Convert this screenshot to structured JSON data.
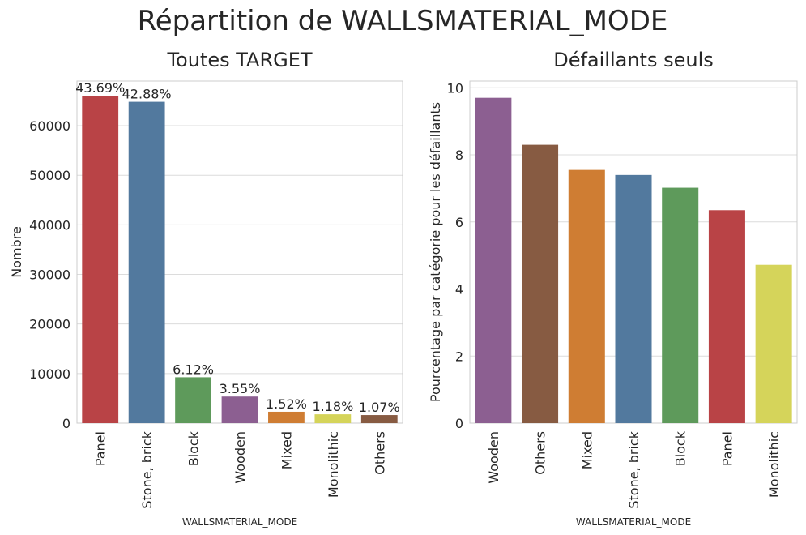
{
  "figure": {
    "title": "Répartition de WALLSMATERIAL_MODE"
  },
  "chart_data": [
    {
      "type": "bar",
      "title": "Toutes TARGET",
      "xlabel": "WALLSMATERIAL_MODE",
      "ylabel": "Nombre",
      "ylim": [
        0,
        69000
      ],
      "yticks": [
        0,
        10000,
        20000,
        30000,
        40000,
        50000,
        60000
      ],
      "grid": true,
      "categories": [
        "Panel",
        "Stone, brick",
        "Block",
        "Wooden",
        "Mixed",
        "Monolithic",
        "Others"
      ],
      "values": [
        66040,
        64815,
        9253,
        5362,
        2296,
        1779,
        1625
      ],
      "data_labels": [
        "43.69%",
        "42.88%",
        "6.12%",
        "3.55%",
        "1.52%",
        "1.18%",
        "1.07%"
      ],
      "colors": [
        "#b94346",
        "#52799e",
        "#5e9a5b",
        "#8c5f91",
        "#cf7d33",
        "#d5d45a",
        "#875b42"
      ]
    },
    {
      "type": "bar",
      "title": "Défaillants seuls",
      "xlabel": "WALLSMATERIAL_MODE",
      "ylabel": "Pourcentage par catégorie pour les défaillants",
      "ylim": [
        0,
        10.2
      ],
      "yticks": [
        0,
        2,
        4,
        6,
        8,
        10
      ],
      "grid": true,
      "categories": [
        "Wooden",
        "Others",
        "Mixed",
        "Stone, brick",
        "Block",
        "Panel",
        "Monolithic"
      ],
      "values": [
        9.7,
        8.3,
        7.55,
        7.4,
        7.02,
        6.35,
        4.72
      ],
      "colors": [
        "#8c5f91",
        "#875b42",
        "#cf7d33",
        "#52799e",
        "#5e9a5b",
        "#b94346",
        "#d5d45a"
      ]
    }
  ]
}
